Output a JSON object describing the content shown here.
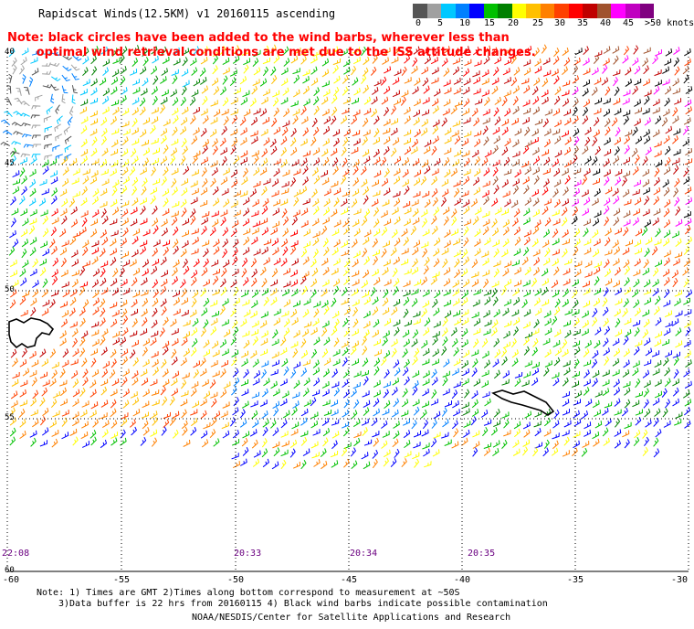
{
  "header": {
    "title": "Rapidscat Winds(12.5KM) v1 20160115 ascending",
    "note_line1": "Note: black circles have been added to the wind barbs, wherever less than",
    "note_line2": "       optimal wind retrieval conditions are met due to the ISS attitude changes."
  },
  "legend": {
    "labels": [
      "0",
      "5",
      "10",
      "15",
      "20",
      "25",
      "30",
      "35",
      "40",
      "45",
      ">50 knots"
    ],
    "colors": [
      "#555555",
      "#a0a0a0",
      "#00c8ff",
      "#0080ff",
      "#0000ff",
      "#00c000",
      "#008000",
      "#ffff00",
      "#ffc000",
      "#ff8000",
      "#ff4000",
      "#ff0000",
      "#c00000",
      "#a0522d",
      "#ff00ff",
      "#c000c0",
      "#800080"
    ]
  },
  "map": {
    "lon_labels": [
      "-60",
      "-55",
      "-50",
      "-45",
      "-40",
      "-35",
      "-30"
    ],
    "lat_labels": [
      "40",
      "45",
      "50",
      "55",
      "60"
    ],
    "times": [
      "22:08",
      "20:33",
      "20:34",
      "20:35"
    ]
  },
  "footer": {
    "line1": "Note: 1) Times are GMT 2)Times along bottom correspond to measurement at ~50S",
    "line2": "3)Data buffer is 22 hrs from 20160115 4) Black wind barbs indicate possible contamination",
    "credit": "NOAA/NESDIS/Center for Satellite Applications and Research"
  }
}
